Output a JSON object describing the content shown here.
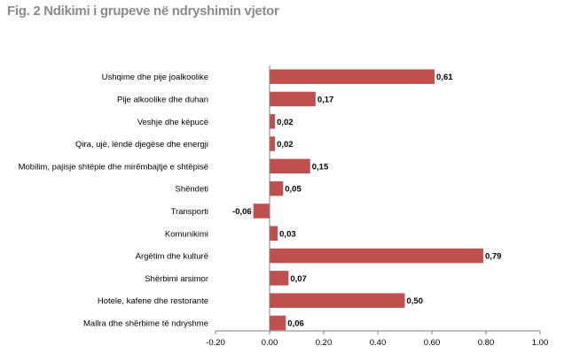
{
  "figure": {
    "title": "Fig. 2 Ndikimi i grupeve në ndryshimin vjetor"
  },
  "chart_data": {
    "type": "bar",
    "orientation": "horizontal",
    "title": "Fig. 2 Ndikimi i grupeve në ndryshimin vjetor",
    "categories": [
      "Ushqime dhe pije joalkoolike",
      "Pije alkoolike dhe duhan",
      "Veshje dhe këpucë",
      "Qira, ujë, lëndë djegëse dhe energji",
      "Mobilim, pajisje shtëpie dhe mirëmbajtje e shtëpisë",
      "Shëndeti",
      "Transporti",
      "Komunikimi",
      "Argëtim dhe kulturë",
      "Shërbimi arsimor",
      "Hotele, kafene dhe restorante",
      "Mallra dhe shërbime të ndryshme"
    ],
    "values": [
      0.61,
      0.17,
      0.02,
      0.02,
      0.15,
      0.05,
      -0.06,
      0.03,
      0.79,
      0.07,
      0.5,
      0.06
    ],
    "value_labels": [
      "0,61",
      "0,17",
      "0,02",
      "0,02",
      "0,15",
      "0,05",
      "-0,06",
      "0,03",
      "0,79",
      "0,07",
      "0,50",
      "0,06"
    ],
    "xlim": [
      -0.2,
      1.0
    ],
    "xticks": [
      -0.2,
      0.0,
      0.2,
      0.4,
      0.6,
      0.8,
      1.0
    ],
    "xtick_labels": [
      "-0.20",
      "0.00",
      "0.20",
      "0.40",
      "0.60",
      "0.80",
      "1.00"
    ],
    "bar_color": "#c0504d",
    "grid": false,
    "legend": "none"
  }
}
